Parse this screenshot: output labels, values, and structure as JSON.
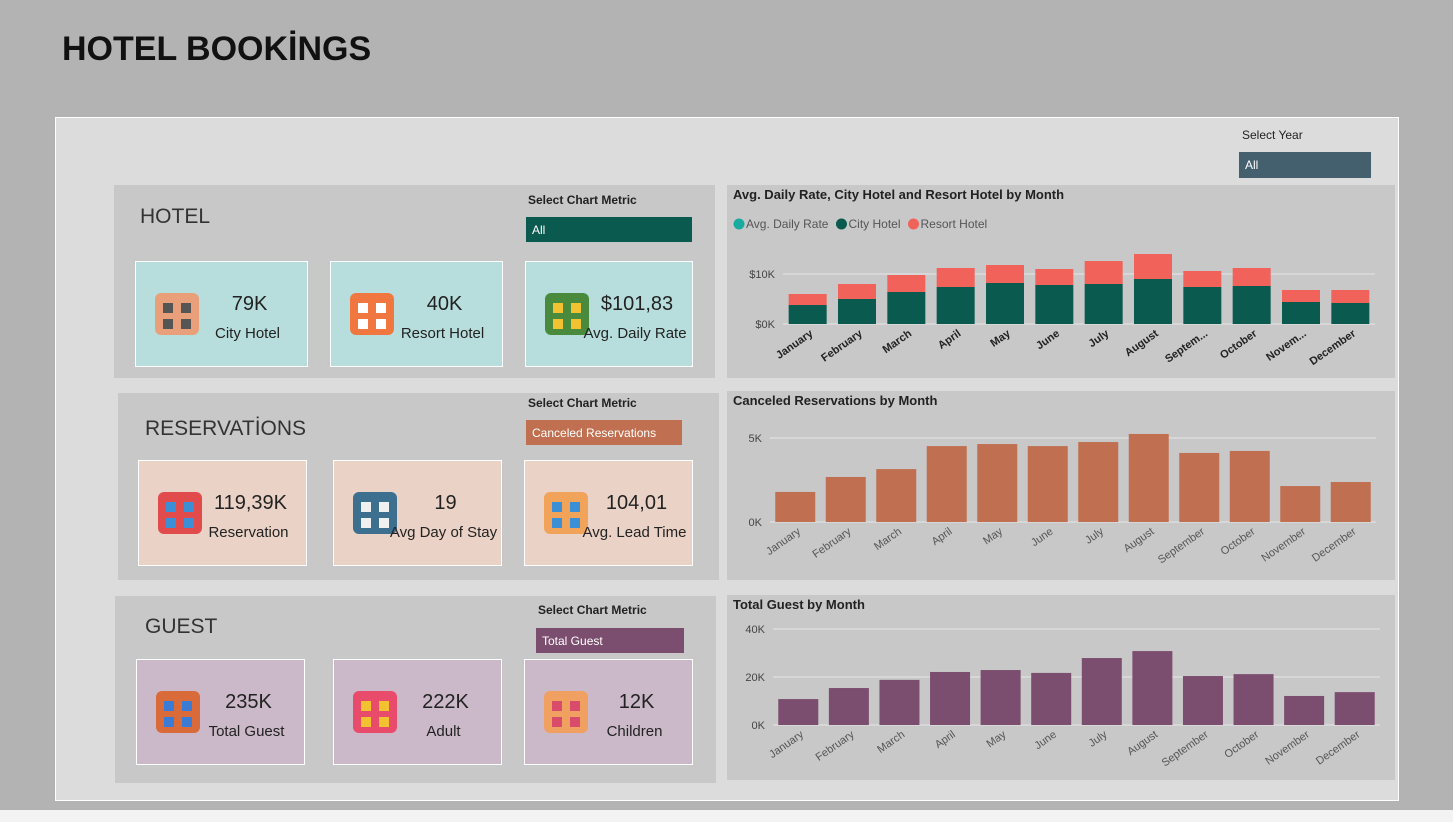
{
  "header": {
    "title": "HOTEL BOOKİNGS"
  },
  "year_filter": {
    "label": "Select Year",
    "value": "All"
  },
  "panels": [
    {
      "title": "HOTEL",
      "metric_label": "Select Chart Metric",
      "metric_value": "All",
      "cards": [
        {
          "value": "79K",
          "label": "City Hotel"
        },
        {
          "value": "40K",
          "label": "Resort Hotel"
        },
        {
          "value": "$101,83",
          "label": "Avg. Daily Rate"
        }
      ]
    },
    {
      "title": "RESERVATİONS",
      "metric_label": "Select Chart Metric",
      "metric_value": "Canceled Reservations",
      "cards": [
        {
          "value": "119,39K",
          "label": "Reservation"
        },
        {
          "value": "19",
          "label": "Avg Day of Stay"
        },
        {
          "value": "104,01",
          "label": "Avg. Lead  Time"
        }
      ]
    },
    {
      "title": "GUEST",
      "metric_label": "Select Chart Metric",
      "metric_value": "Total Guest",
      "cards": [
        {
          "value": "235K",
          "label": "Total Guest"
        },
        {
          "value": "222K",
          "label": "Adult"
        },
        {
          "value": "12K",
          "label": "Children"
        }
      ]
    }
  ],
  "chart_data": [
    {
      "type": "stacked_bar",
      "title": "Avg. Daily Rate, City Hotel and Resort Hotel by Month",
      "categories": [
        "January",
        "February",
        "March",
        "April",
        "May",
        "June",
        "July",
        "August",
        "Septem...",
        "October",
        "Novem...",
        "December"
      ],
      "series": [
        {
          "name": "Avg. Daily Rate",
          "color": "#1aaba0",
          "values": [
            null,
            null,
            null,
            null,
            null,
            null,
            null,
            null,
            null,
            null,
            null,
            null
          ]
        },
        {
          "name": "City Hotel",
          "color": "#0b5a4f",
          "values": [
            3800,
            5000,
            6400,
            7400,
            8200,
            7800,
            8000,
            9000,
            7400,
            7600,
            4400,
            4200
          ]
        },
        {
          "name": "Resort Hotel",
          "color": "#f0625a",
          "values": [
            2200,
            3000,
            3400,
            3800,
            3600,
            3200,
            4600,
            5000,
            3200,
            3600,
            2400,
            2600
          ]
        }
      ],
      "ylim": [
        0,
        15000
      ],
      "yticks": [
        {
          "value": 0,
          "label": "$0K"
        },
        {
          "value": 10000,
          "label": "$10K"
        }
      ],
      "grid": true,
      "legend": "top-left"
    },
    {
      "type": "bar",
      "title": "Canceled Reservations by Month",
      "categories": [
        "January",
        "February",
        "March",
        "April",
        "May",
        "June",
        "July",
        "August",
        "September",
        "October",
        "November",
        "December"
      ],
      "values": [
        1790,
        2680,
        3150,
        4520,
        4640,
        4520,
        4760,
        5240,
        4110,
        4230,
        2140,
        2380
      ],
      "color": "#c07050",
      "ylim": [
        0,
        5500
      ],
      "yticks": [
        {
          "value": 0,
          "label": "0K"
        },
        {
          "value": 5000,
          "label": "5K"
        }
      ],
      "grid": true
    },
    {
      "type": "bar",
      "title": "Total Guest by Month",
      "categories": [
        "January",
        "February",
        "March",
        "April",
        "May",
        "June",
        "July",
        "August",
        "September",
        "October",
        "November",
        "December"
      ],
      "values": [
        10800,
        15400,
        18800,
        22100,
        22900,
        21700,
        27900,
        30800,
        20400,
        21200,
        12100,
        13700
      ],
      "color": "#7b4d6e",
      "ylim": [
        0,
        40000
      ],
      "yticks": [
        {
          "value": 0,
          "label": "0K"
        },
        {
          "value": 20000,
          "label": "20K"
        },
        {
          "value": 40000,
          "label": "40K"
        }
      ],
      "grid": true
    }
  ]
}
